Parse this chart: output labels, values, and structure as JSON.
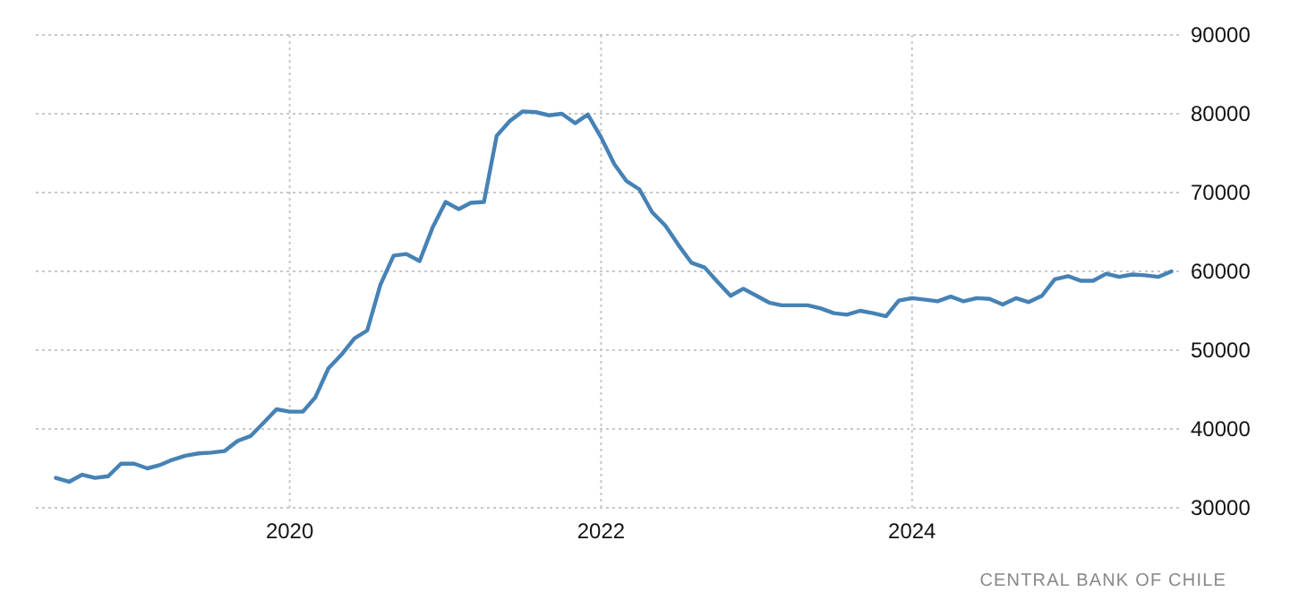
{
  "chart_data": {
    "type": "line",
    "x": [
      "2018-07",
      "2018-08",
      "2018-09",
      "2018-10",
      "2018-11",
      "2018-12",
      "2019-01",
      "2019-02",
      "2019-03",
      "2019-04",
      "2019-05",
      "2019-06",
      "2019-07",
      "2019-08",
      "2019-09",
      "2019-10",
      "2019-11",
      "2019-12",
      "2020-01",
      "2020-02",
      "2020-03",
      "2020-04",
      "2020-05",
      "2020-06",
      "2020-07",
      "2020-08",
      "2020-09",
      "2020-10",
      "2020-11",
      "2020-12",
      "2021-01",
      "2021-02",
      "2021-03",
      "2021-04",
      "2021-05",
      "2021-06",
      "2021-07",
      "2021-08",
      "2021-09",
      "2021-10",
      "2021-11",
      "2021-12",
      "2022-01",
      "2022-02",
      "2022-03",
      "2022-04",
      "2022-05",
      "2022-06",
      "2022-07",
      "2022-08",
      "2022-09",
      "2022-10",
      "2022-11",
      "2022-12",
      "2023-01",
      "2023-02",
      "2023-03",
      "2023-04",
      "2023-05",
      "2023-06",
      "2023-07",
      "2023-08",
      "2023-09",
      "2023-10",
      "2023-11",
      "2023-12",
      "2024-01",
      "2024-02",
      "2024-03",
      "2024-04",
      "2024-05",
      "2024-06",
      "2024-07",
      "2024-08",
      "2024-09",
      "2024-10",
      "2024-11",
      "2024-12",
      "2025-01",
      "2025-02",
      "2025-03",
      "2025-04",
      "2025-05",
      "2025-06",
      "2025-07",
      "2025-08",
      "2025-09"
    ],
    "series": [
      {
        "color": "#4682b4",
        "values": [
          33800,
          33300,
          34200,
          33800,
          34000,
          35600,
          35600,
          35000,
          35400,
          36100,
          36600,
          36900,
          37000,
          37200,
          38500,
          39100,
          40800,
          42500,
          42200,
          42200,
          44000,
          47700,
          49400,
          51500,
          52500,
          58300,
          62000,
          62200,
          61300,
          65500,
          68800,
          67900,
          68700,
          68800,
          77200,
          79100,
          80300,
          80200,
          79800,
          80000,
          78800,
          79900,
          77000,
          73600,
          71500,
          70400,
          67500,
          65800,
          63400,
          61100,
          60500,
          58700,
          56900,
          57800,
          56900,
          56000,
          55700,
          55700,
          55700,
          55300,
          54700,
          54500,
          55000,
          54700,
          54300,
          56300,
          56600,
          56400,
          56200,
          56800,
          56200,
          56600,
          56500,
          55800,
          56600,
          56100,
          56900,
          59000,
          59400,
          58800,
          58800,
          59700,
          59300,
          59600,
          59500,
          59300,
          60000
        ]
      }
    ],
    "xlim": [
      "2018-05-15",
      "2025-09-25"
    ],
    "xticks": [
      "2020",
      "2022",
      "2024"
    ],
    "ylim": [
      30000,
      90000
    ],
    "yticks": [
      30000,
      40000,
      50000,
      60000,
      70000,
      80000,
      90000
    ],
    "grid": true,
    "line_style": "solid",
    "marker": "none",
    "annotations": [
      "CENTRAL BANK OF CHILE"
    ]
  }
}
